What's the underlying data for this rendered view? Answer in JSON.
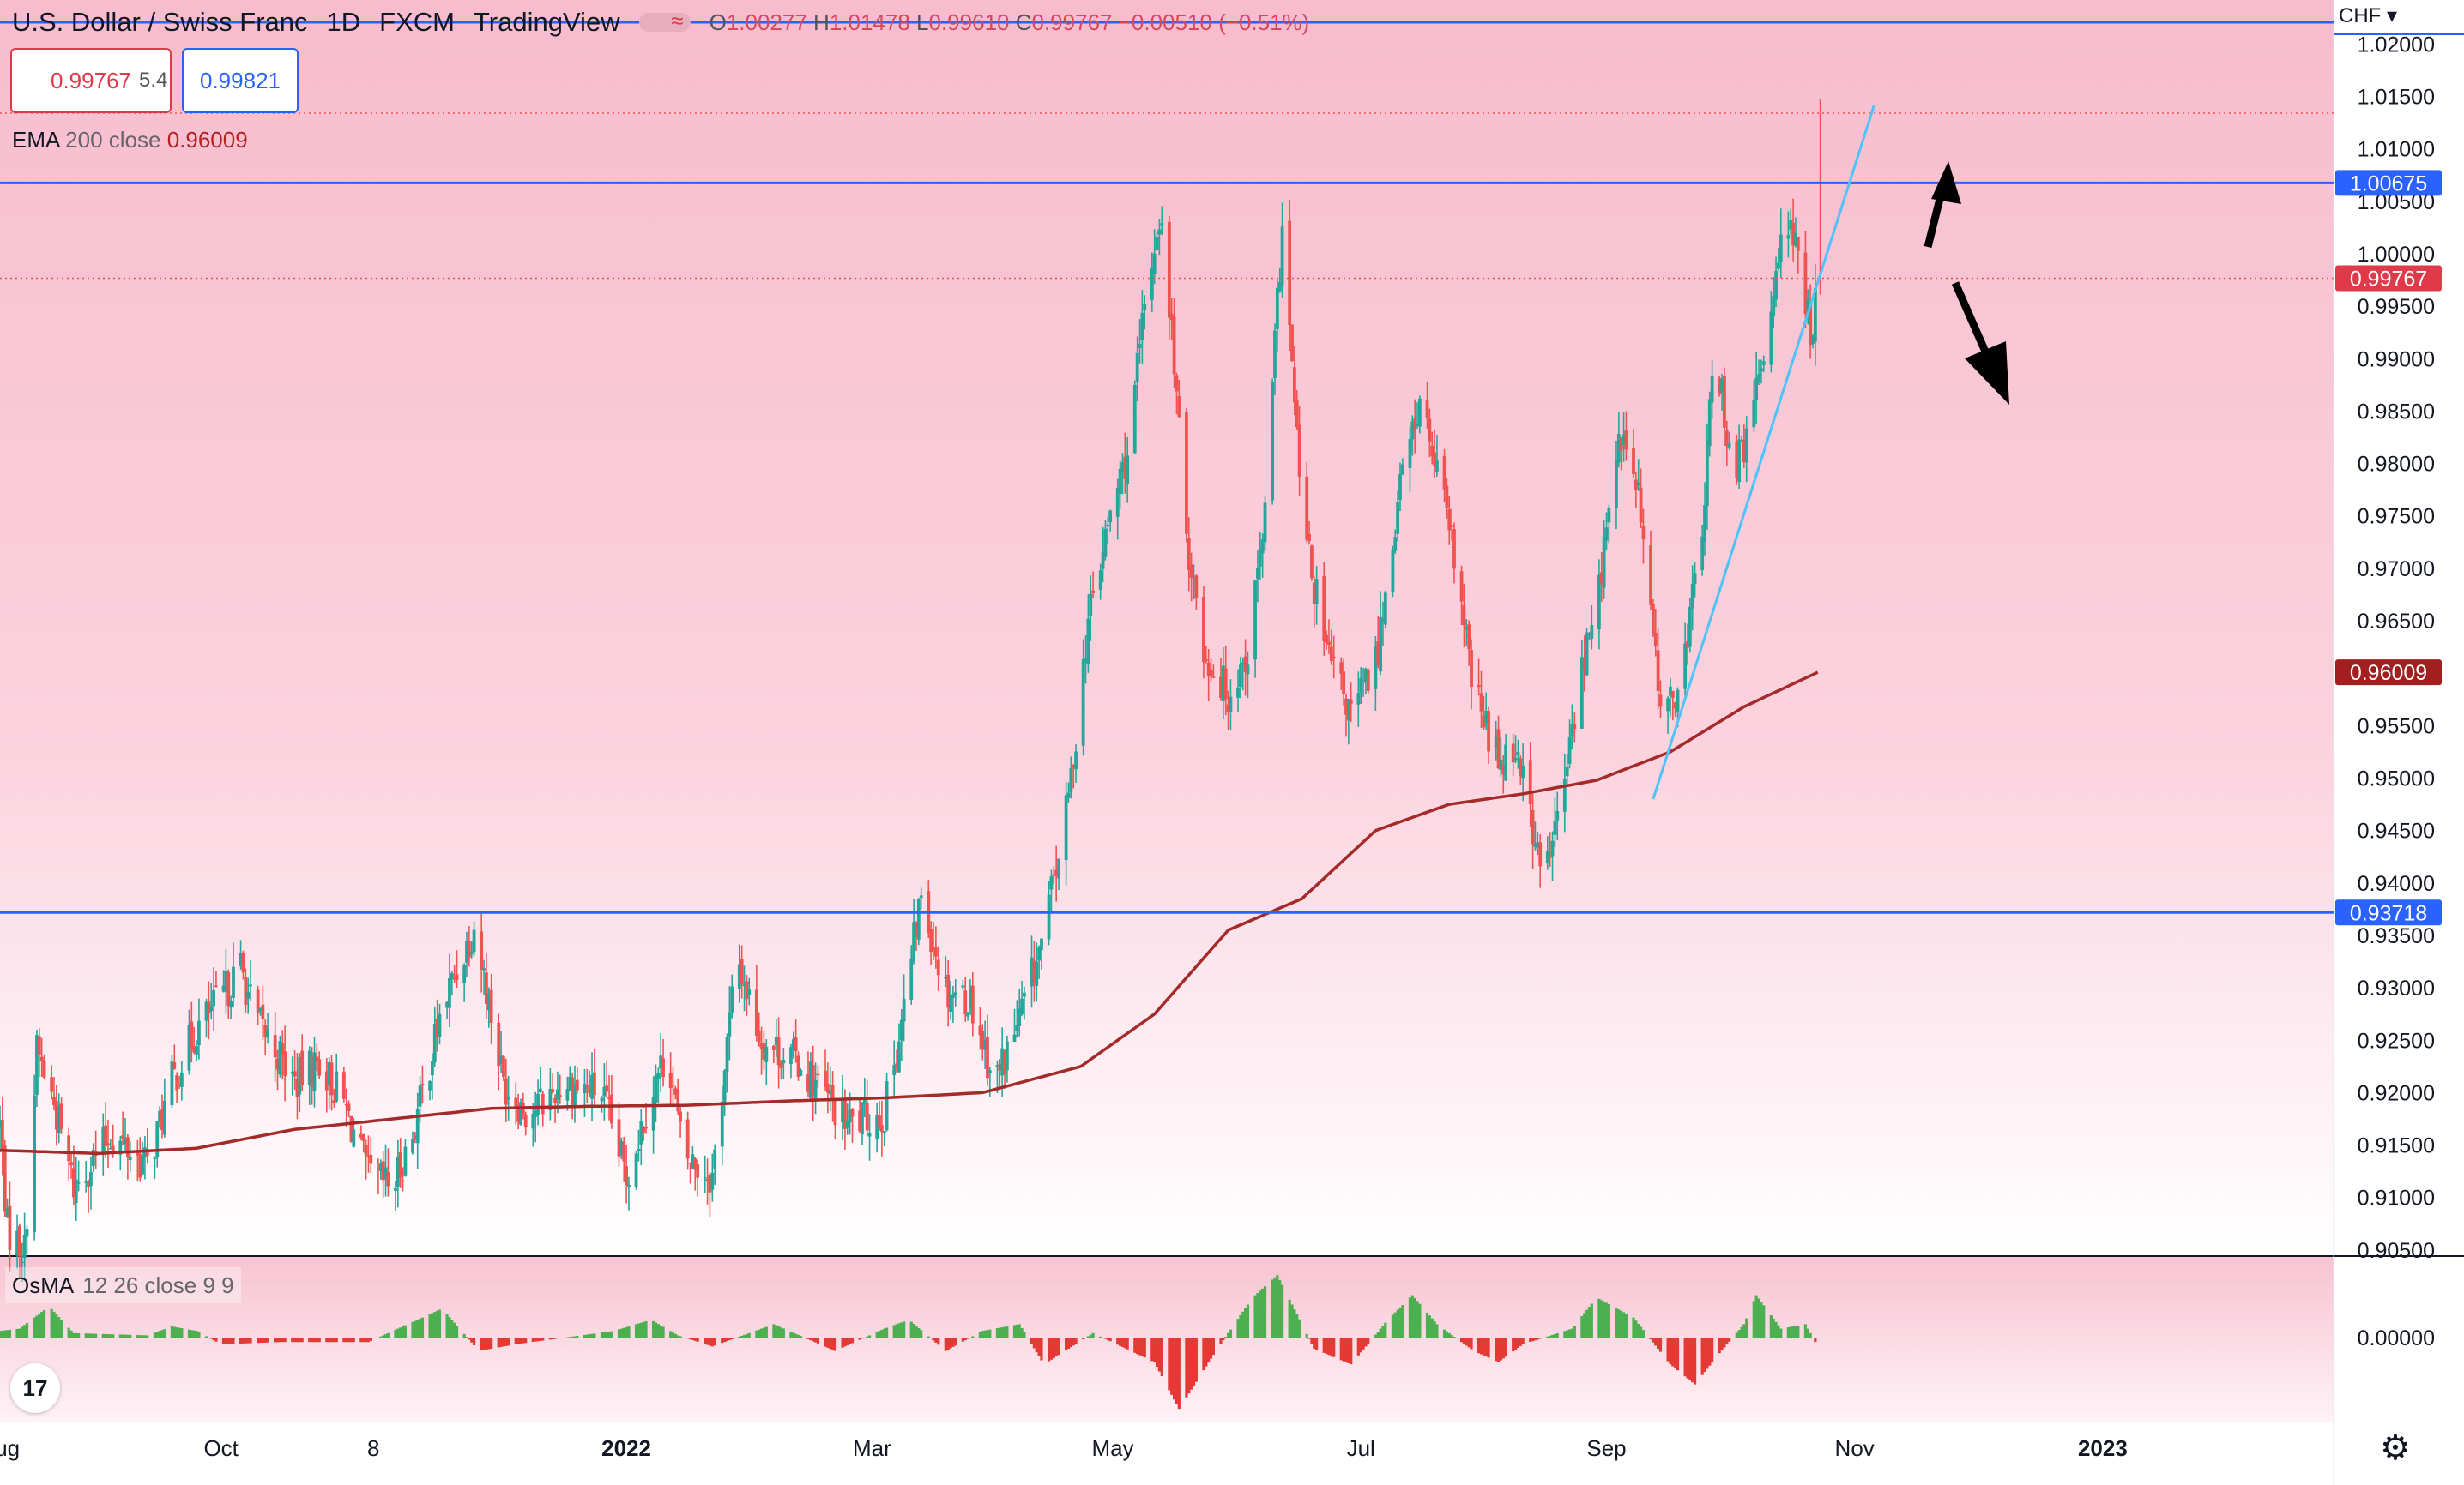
{
  "header": {
    "symbol": "U.S. Dollar / Swiss Franc",
    "interval": "1D",
    "exchange": "FXCM",
    "source": "TradingView",
    "ohlc": {
      "o": "1.00277",
      "h": "1.01478",
      "l": "0.99610",
      "c": "0.99767",
      "change": "−0.00510 (−0.51%)"
    },
    "o_label": "O",
    "h_label": "H",
    "l_label": "L",
    "c_label": "C",
    "tilde": "≈"
  },
  "price_boxes": {
    "sell": "0.99767",
    "spread": "5.4",
    "buy": "0.99821"
  },
  "ema_legend": {
    "name": "EMA",
    "params": "200 close",
    "value": "0.96009"
  },
  "osma_legend": {
    "name": "OsMA",
    "params": "12 26 close 9 9"
  },
  "currency_selector": "CHF ▾",
  "tv_logo": "17",
  "settings_icon": "gear-icon",
  "colors": {
    "bull": "#26a69a",
    "bear": "#ef5350",
    "ema": "#a52a2a",
    "hline": "#2962ff",
    "trend": "#4fc3f7",
    "pane_top": "#f7bccd",
    "pane_bottom": "#ffffff",
    "osma_pos": "#4caf50",
    "osma_neg": "#e53935"
  },
  "chart_data": {
    "type": "candlestick",
    "y_axis": {
      "range": [
        0.9045,
        1.0242
      ],
      "ticks": [
        "1.02000",
        "1.01500",
        "1.01000",
        "1.00500",
        "1.00000",
        "0.99500",
        "0.99000",
        "0.98500",
        "0.98000",
        "0.97500",
        "0.97000",
        "0.96500",
        "0.96000",
        "0.95500",
        "0.95000",
        "0.94500",
        "0.94000",
        "0.93500",
        "0.93000",
        "0.92500",
        "0.92000",
        "0.91500",
        "0.91000",
        "0.90500"
      ],
      "tick_values": [
        1.02,
        1.015,
        1.01,
        1.005,
        1.0,
        0.995,
        0.99,
        0.985,
        0.98,
        0.975,
        0.97,
        0.965,
        0.96,
        0.955,
        0.95,
        0.945,
        0.94,
        0.935,
        0.93,
        0.925,
        0.92,
        0.915,
        0.91,
        0.905
      ]
    },
    "x_axis": {
      "labels": [
        "Aug",
        "Oct",
        "8",
        "2022",
        "Mar",
        "May",
        "Jul",
        "Sep",
        "Nov",
        "2023"
      ],
      "label_days": [
        0,
        90,
        152,
        255,
        355,
        453,
        554,
        654,
        755,
        856
      ],
      "range_days": [
        0,
        950
      ]
    },
    "last_price": "0.99767",
    "horizontal_levels": [
      {
        "value": 1.00675,
        "label": "1.00675"
      },
      {
        "value": 0.93718,
        "label": "0.93718"
      }
    ],
    "ema_value_label": "0.96009",
    "ema200": [
      [
        0,
        0.9145
      ],
      [
        40,
        0.9142
      ],
      [
        80,
        0.9147
      ],
      [
        120,
        0.9165
      ],
      [
        160,
        0.9175
      ],
      [
        200,
        0.9185
      ],
      [
        240,
        0.9187
      ],
      [
        280,
        0.9188
      ],
      [
        320,
        0.9192
      ],
      [
        360,
        0.9195
      ],
      [
        400,
        0.92
      ],
      [
        440,
        0.9225
      ],
      [
        470,
        0.9275
      ],
      [
        500,
        0.9355
      ],
      [
        530,
        0.9385
      ],
      [
        560,
        0.945
      ],
      [
        590,
        0.9475
      ],
      [
        620,
        0.9485
      ],
      [
        650,
        0.9498
      ],
      [
        680,
        0.9525
      ],
      [
        710,
        0.9568
      ],
      [
        740,
        0.96009
      ]
    ],
    "trendline": [
      [
        673,
        0.948
      ],
      [
        763,
        1.0142
      ]
    ],
    "osma_zero_label": "0.00000",
    "candle_path": [
      [
        0,
        0.917
      ],
      [
        3,
        0.907
      ],
      [
        10,
        0.905
      ],
      [
        15,
        0.924
      ],
      [
        22,
        0.919
      ],
      [
        30,
        0.911
      ],
      [
        45,
        0.916
      ],
      [
        60,
        0.913
      ],
      [
        70,
        0.921
      ],
      [
        80,
        0.926
      ],
      [
        90,
        0.929
      ],
      [
        98,
        0.932
      ],
      [
        104,
        0.927
      ],
      [
        110,
        0.925
      ],
      [
        120,
        0.921
      ],
      [
        130,
        0.923
      ],
      [
        140,
        0.919
      ],
      [
        150,
        0.912
      ],
      [
        160,
        0.911
      ],
      [
        168,
        0.916
      ],
      [
        180,
        0.928
      ],
      [
        193,
        0.936
      ],
      [
        198,
        0.93
      ],
      [
        205,
        0.921
      ],
      [
        215,
        0.918
      ],
      [
        230,
        0.921
      ],
      [
        245,
        0.92
      ],
      [
        255,
        0.912
      ],
      [
        265,
        0.92
      ],
      [
        272,
        0.924
      ],
      [
        278,
        0.914
      ],
      [
        290,
        0.912
      ],
      [
        300,
        0.933
      ],
      [
        310,
        0.925
      ],
      [
        325,
        0.923
      ],
      [
        335,
        0.92
      ],
      [
        345,
        0.917
      ],
      [
        360,
        0.918
      ],
      [
        368,
        0.928
      ],
      [
        375,
        0.939
      ],
      [
        385,
        0.93
      ],
      [
        395,
        0.929
      ],
      [
        405,
        0.921
      ],
      [
        415,
        0.927
      ],
      [
        425,
        0.935
      ],
      [
        435,
        0.948
      ],
      [
        443,
        0.965
      ],
      [
        452,
        0.975
      ],
      [
        460,
        0.982
      ],
      [
        465,
        0.993
      ],
      [
        472,
        1.004
      ],
      [
        478,
        0.99
      ],
      [
        482,
        0.975
      ],
      [
        490,
        0.962
      ],
      [
        500,
        0.958
      ],
      [
        508,
        0.962
      ],
      [
        515,
        0.975
      ],
      [
        522,
        1.003
      ],
      [
        528,
        0.982
      ],
      [
        532,
        0.972
      ],
      [
        540,
        0.962
      ],
      [
        550,
        0.956
      ],
      [
        560,
        0.961
      ],
      [
        570,
        0.978
      ],
      [
        578,
        0.986
      ],
      [
        585,
        0.979
      ],
      [
        592,
        0.971
      ],
      [
        600,
        0.958
      ],
      [
        610,
        0.952
      ],
      [
        618,
        0.953
      ],
      [
        628,
        0.94
      ],
      [
        636,
        0.948
      ],
      [
        642,
        0.958
      ],
      [
        650,
        0.967
      ],
      [
        660,
        0.983
      ],
      [
        667,
        0.977
      ],
      [
        672,
        0.965
      ],
      [
        678,
        0.955
      ],
      [
        686,
        0.962
      ],
      [
        693,
        0.974
      ],
      [
        698,
        0.991
      ],
      [
        706,
        0.979
      ],
      [
        712,
        0.983
      ],
      [
        720,
        0.993
      ],
      [
        726,
        1.005
      ],
      [
        732,
        0.999
      ],
      [
        737,
        0.993
      ],
      [
        741,
        0.9977
      ]
    ],
    "osma_path": [
      [
        0,
        0.3
      ],
      [
        8,
        0.4
      ],
      [
        20,
        1.4
      ],
      [
        30,
        0.2
      ],
      [
        60,
        0.1
      ],
      [
        70,
        0.5
      ],
      [
        80,
        0.3
      ],
      [
        90,
        -0.3
      ],
      [
        115,
        -0.2
      ],
      [
        150,
        -0.2
      ],
      [
        170,
        0.8
      ],
      [
        180,
        1.3
      ],
      [
        195,
        -0.6
      ],
      [
        210,
        -0.3
      ],
      [
        250,
        0.3
      ],
      [
        265,
        0.8
      ],
      [
        276,
        0.1
      ],
      [
        290,
        -0.4
      ],
      [
        315,
        0.6
      ],
      [
        340,
        -0.6
      ],
      [
        360,
        0.4
      ],
      [
        370,
        0.8
      ],
      [
        385,
        -0.6
      ],
      [
        400,
        0.3
      ],
      [
        415,
        0.6
      ],
      [
        425,
        -1.2
      ],
      [
        445,
        0.2
      ],
      [
        470,
        -1.1
      ],
      [
        480,
        -3.2
      ],
      [
        495,
        -0.6
      ],
      [
        510,
        1.8
      ],
      [
        520,
        2.8
      ],
      [
        535,
        -0.5
      ],
      [
        550,
        -1.2
      ],
      [
        565,
        0.8
      ],
      [
        575,
        1.9
      ],
      [
        585,
        0.6
      ],
      [
        600,
        -0.6
      ],
      [
        610,
        -1.1
      ],
      [
        620,
        -0.3
      ],
      [
        640,
        0.4
      ],
      [
        650,
        1.8
      ],
      [
        665,
        0.9
      ],
      [
        680,
        -1.2
      ],
      [
        690,
        -2.1
      ],
      [
        700,
        -0.7
      ],
      [
        710,
        0.6
      ],
      [
        715,
        1.9
      ],
      [
        725,
        0.4
      ],
      [
        735,
        0.6
      ],
      [
        741,
        -0.6
      ]
    ],
    "price_scale_currency": "CHF"
  }
}
